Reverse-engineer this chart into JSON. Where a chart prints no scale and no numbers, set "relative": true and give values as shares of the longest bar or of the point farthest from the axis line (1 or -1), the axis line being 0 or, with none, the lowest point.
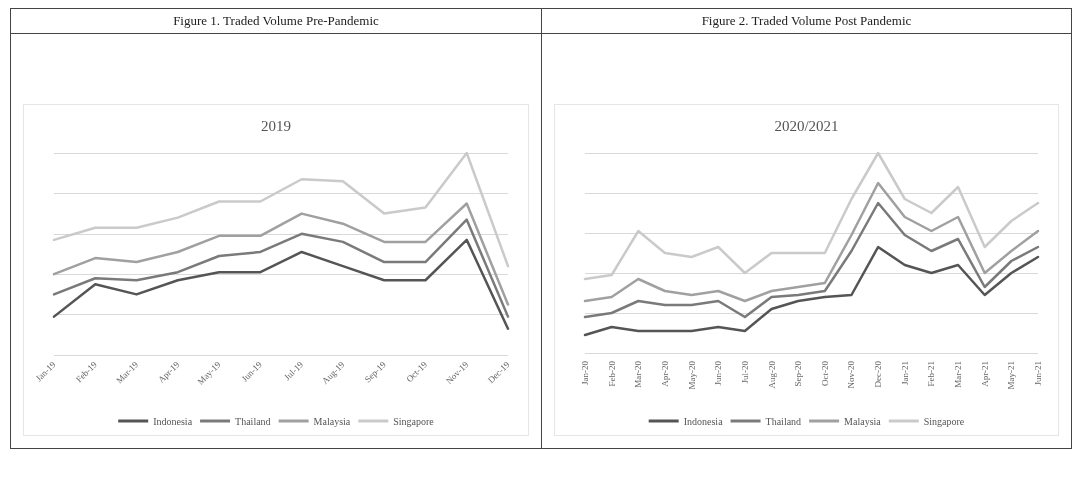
{
  "chart_data": [
    {
      "type": "line",
      "title": "Figure 1. Traded Volume Pre-Pandemic",
      "subtitle": "2019",
      "relative": true,
      "grid": "y",
      "legend": "bottom",
      "marker": "none",
      "line_style": "solid",
      "categories": [
        "Jan-19",
        "Feb-19",
        "Mar-19",
        "Apr-19",
        "May-19",
        "Jun-19",
        "Jul-19",
        "Aug-19",
        "Sep-19",
        "Oct-19",
        "Nov-19",
        "Dec-19"
      ],
      "series": [
        {
          "name": "Indonesia",
          "color": "#555555",
          "values": [
            0.19,
            0.35,
            0.3,
            0.37,
            0.41,
            0.41,
            0.51,
            0.44,
            0.37,
            0.37,
            0.57,
            0.13
          ]
        },
        {
          "name": "Thailand",
          "color": "#7a7a7a",
          "values": [
            0.3,
            0.38,
            0.37,
            0.41,
            0.49,
            0.51,
            0.6,
            0.56,
            0.46,
            0.46,
            0.67,
            0.19
          ]
        },
        {
          "name": "Malaysia",
          "color": "#a0a0a0",
          "values": [
            0.4,
            0.48,
            0.46,
            0.51,
            0.59,
            0.59,
            0.7,
            0.65,
            0.56,
            0.56,
            0.75,
            0.25
          ]
        },
        {
          "name": "Singapore",
          "color": "#cacaca",
          "values": [
            0.57,
            0.63,
            0.63,
            0.68,
            0.76,
            0.76,
            0.87,
            0.86,
            0.7,
            0.73,
            1,
            0.44
          ]
        }
      ]
    },
    {
      "type": "line",
      "title": "Figure 2. Traded Volume Post Pandemic",
      "subtitle": "2020/2021",
      "relative": true,
      "grid": "y",
      "legend": "bottom",
      "marker": "none",
      "line_style": "solid",
      "categories": [
        "Jan-20",
        "Feb-20",
        "Mar-20",
        "Apr-20",
        "May-20",
        "Jun-20",
        "Jul-20",
        "Aug-20",
        "Sep-20",
        "Oct-20",
        "Nov-20",
        "Dec-20",
        "Jan-21",
        "Feb-21",
        "Mar-21",
        "Apr-21",
        "May-21",
        "Jun-21"
      ],
      "series": [
        {
          "name": "Indonesia",
          "color": "#555555",
          "values": [
            0.09,
            0.13,
            0.11,
            0.11,
            0.11,
            0.13,
            0.11,
            0.22,
            0.26,
            0.28,
            0.29,
            0.53,
            0.44,
            0.4,
            0.44,
            0.29,
            0.4,
            0.48
          ]
        },
        {
          "name": "Thailand",
          "color": "#7a7a7a",
          "values": [
            0.18,
            0.2,
            0.26,
            0.24,
            0.24,
            0.26,
            0.18,
            0.28,
            0.29,
            0.31,
            0.51,
            0.75,
            0.59,
            0.51,
            0.57,
            0.33,
            0.46,
            0.53
          ]
        },
        {
          "name": "Malaysia",
          "color": "#a0a0a0",
          "values": [
            0.26,
            0.28,
            0.37,
            0.31,
            0.29,
            0.31,
            0.26,
            0.31,
            0.33,
            0.35,
            0.59,
            0.85,
            0.68,
            0.61,
            0.68,
            0.4,
            0.51,
            0.61
          ]
        },
        {
          "name": "Singapore",
          "color": "#cacaca",
          "values": [
            0.37,
            0.39,
            0.61,
            0.5,
            0.48,
            0.53,
            0.4,
            0.5,
            0.5,
            0.5,
            0.77,
            1,
            0.77,
            0.7,
            0.83,
            0.53,
            0.66,
            0.75
          ]
        }
      ]
    }
  ]
}
